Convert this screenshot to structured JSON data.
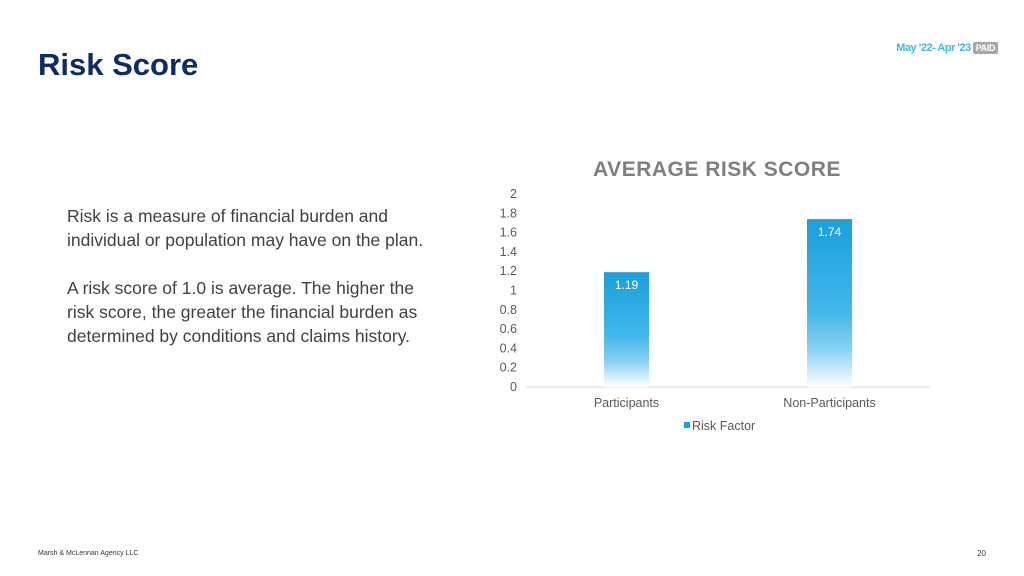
{
  "slide": {
    "title": "Risk Score",
    "period": "May '22- Apr '23",
    "period_badge": "PAID",
    "paragraphs": [
      "Risk is a measure of financial burden and individual or population may have on the plan.",
      "A risk score of 1.0 is average. The higher the risk score, the greater the financial burden as determined by conditions and claims history."
    ],
    "footer_left": "Marsh & McLennan Agency LLC",
    "page_number": "20"
  },
  "chart_data": {
    "type": "bar",
    "title": "AVERAGE RISK SCORE",
    "categories": [
      "Participants",
      "Non-Participants"
    ],
    "series": [
      {
        "name": "Risk Factor",
        "values": [
          1.19,
          1.74
        ],
        "color": "#1aa0dc"
      }
    ],
    "y_ticks": [
      "0",
      "0.2",
      "0.4",
      "0.6",
      "0.8",
      "1",
      "1.2",
      "1.4",
      "1.6",
      "1.8",
      "2"
    ],
    "ylim": [
      0,
      2
    ],
    "grid": false,
    "legend_position": "bottom"
  }
}
